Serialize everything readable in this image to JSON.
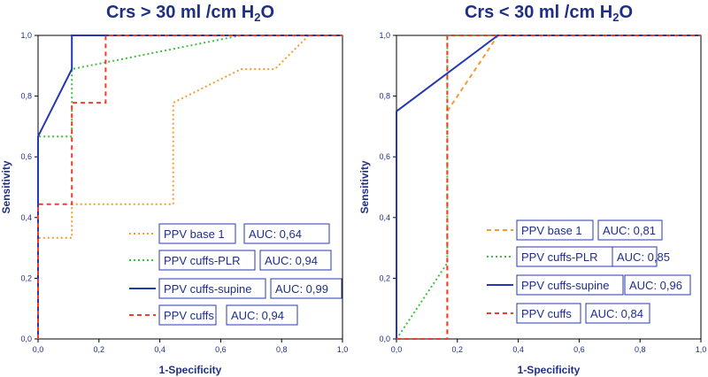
{
  "colors": {
    "axis": "#000000",
    "text": "#1f2f86",
    "base": "#f39c32",
    "plr": "#3fbf3f",
    "supine": "#2438b4",
    "cuffs": "#e8402c",
    "box": "#2438b4"
  },
  "chart_data": [
    {
      "type": "line",
      "title": "Crs > 30 ml /cm H",
      "title_sub": "2",
      "title_end": "O",
      "xlabel": "1-Specificity",
      "ylabel": "Sensitivity",
      "xlim": [
        0,
        1
      ],
      "ylim": [
        0,
        1
      ],
      "xticks": [
        "0,0",
        "0,2",
        "0,4",
        "0,6",
        "0,8",
        "1,0"
      ],
      "yticks": [
        "0,0",
        "0,2",
        "0,4",
        "0,6",
        "0,8",
        "1,0"
      ],
      "legend_position": "bottom-right",
      "series": [
        {
          "name": "PPV base 1",
          "auc": "AUC: 0,64",
          "style": "dotted",
          "color_key": "base",
          "x": [
            0,
            0,
            0.111,
            0.111,
            0.444,
            0.444,
            0.667,
            0.778,
            0.889,
            1
          ],
          "y": [
            0,
            0.333,
            0.333,
            0.444,
            0.444,
            0.778,
            0.889,
            0.889,
            1,
            1
          ]
        },
        {
          "name": "PPV cuffs-PLR",
          "auc": "AUC: 0,94",
          "style": "dotted",
          "color_key": "plr",
          "x": [
            0,
            0,
            0.111,
            0.111,
            0.667,
            1
          ],
          "y": [
            0,
            0.667,
            0.667,
            0.889,
            1,
            1
          ]
        },
        {
          "name": "PPV cuffs-supine",
          "auc": "AUC: 0,99",
          "style": "solid",
          "color_key": "supine",
          "x": [
            0,
            0,
            0.111,
            0.111,
            1
          ],
          "y": [
            0,
            0.667,
            0.889,
            1,
            1
          ]
        },
        {
          "name": "PPV cuffs",
          "auc": "AUC: 0,94",
          "style": "dashed",
          "color_key": "cuffs",
          "x": [
            0,
            0,
            0.111,
            0.111,
            0.222,
            0.222,
            1
          ],
          "y": [
            0,
            0.444,
            0.444,
            0.778,
            0.778,
            1,
            1
          ]
        }
      ]
    },
    {
      "type": "line",
      "title": "Crs < 30 ml /cm H",
      "title_sub": "2",
      "title_end": "O",
      "xlabel": "1-Specificity",
      "ylabel": "Sensitivity",
      "xlim": [
        0,
        1
      ],
      "ylim": [
        0,
        1
      ],
      "xticks": [
        "0,0",
        "0,2",
        "0,4",
        "0,6",
        "0,8",
        "1,0"
      ],
      "yticks": [
        "0,0",
        "0,2",
        "0,4",
        "0,6",
        "0,8",
        "1,0"
      ],
      "legend_position": "bottom-right",
      "series": [
        {
          "name": "PPV base 1",
          "auc": "AUC: 0,81",
          "style": "dashed",
          "color_key": "base",
          "x": [
            0,
            0.167,
            0.167,
            0.333,
            1
          ],
          "y": [
            0,
            0,
            0.75,
            1,
            1
          ]
        },
        {
          "name": "PPV cuffs-PLR",
          "auc": "AUC: 0,85",
          "style": "dotted",
          "color_key": "plr",
          "x": [
            0,
            0.167,
            0.167,
            1
          ],
          "y": [
            0,
            0.25,
            1,
            1
          ]
        },
        {
          "name": "PPV cuffs-supine",
          "auc": "AUC: 0,96",
          "style": "solid",
          "color_key": "supine",
          "x": [
            0,
            0,
            0.333,
            1
          ],
          "y": [
            0,
            0.75,
            1,
            1
          ]
        },
        {
          "name": "PPV cuffs",
          "auc": "AUC: 0,84",
          "style": "dashed",
          "color_key": "cuffs",
          "x": [
            0,
            0.167,
            0.167,
            1
          ],
          "y": [
            0,
            0,
            1,
            1
          ]
        }
      ]
    }
  ]
}
